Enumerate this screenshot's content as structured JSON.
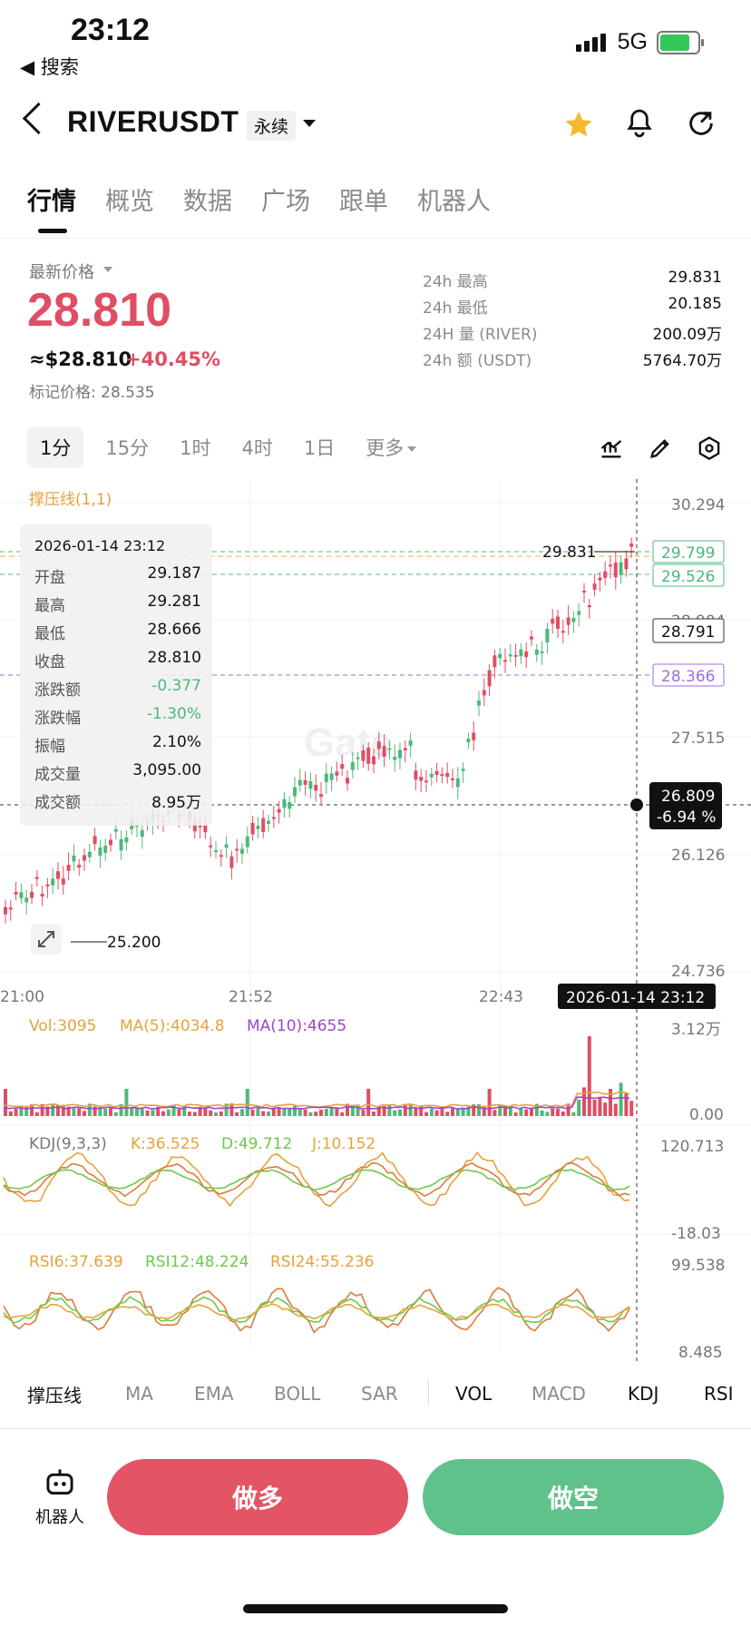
{
  "status": {
    "time": "23:12",
    "back": "◀ 搜索",
    "network": "5G"
  },
  "header": {
    "pair": "RIVERUSDT",
    "contract": "永续"
  },
  "tabs": [
    "行情",
    "概览",
    "数据",
    "广场",
    "跟单",
    "机器人"
  ],
  "ticker": {
    "latest_label": "最新价格",
    "price": "28.810",
    "usd": "≈$28.810",
    "change": "+40.45%",
    "mark": "标记价格: 28.535",
    "stats": [
      {
        "k": "24h  最高",
        "v": "29.831"
      },
      {
        "k": "24h  最低",
        "v": "20.185"
      },
      {
        "k": "24H  量 (RIVER)",
        "v": "200.09万"
      },
      {
        "k": "24h  额 (USDT)",
        "v": "5764.70万"
      }
    ]
  },
  "intervals": [
    "1分",
    "15分",
    "1时",
    "4时",
    "1日",
    "更多"
  ],
  "chart": {
    "sr_label": "撑压线(1,1)",
    "yticks": [
      "30.294",
      "28.904",
      "27.515",
      "26.126",
      "24.736"
    ],
    "xticks": [
      "21:00",
      "21:52",
      "22:43"
    ],
    "tags": {
      "green1": "29.799",
      "green2": "29.526",
      "current": "28.791",
      "purple": "28.366",
      "cursor_price": "26.809",
      "cursor_pct": "-6.94 %",
      "high": "29.831",
      "low": "25.200",
      "cursor_time": "2026-01-14 23:12"
    },
    "watermark": "Gate",
    "vol": {
      "label": "Vol:3095",
      "ma5": "MA(5):4034.8",
      "ma10": "MA(10):4655",
      "top": "3.12万",
      "bottom": "0.00"
    },
    "kdj": {
      "label": "KDJ(9,3,3)",
      "k": "K:36.525",
      "d": "D:49.712",
      "j": "J:10.152",
      "top": "120.713",
      "bottom": "-18.03"
    },
    "rsi": {
      "r6": "RSI6:37.639",
      "r12": "RSI12:48.224",
      "r24": "RSI24:55.236",
      "top": "99.538",
      "bottom": "8.485"
    }
  },
  "tooltip": {
    "date": "2026-01-14 23:12",
    "rows": [
      {
        "k": "开盘",
        "v": "29.187"
      },
      {
        "k": "最高",
        "v": "29.281"
      },
      {
        "k": "最低",
        "v": "28.666"
      },
      {
        "k": "收盘",
        "v": "28.810"
      },
      {
        "k": "涨跌额",
        "v": "-0.377"
      },
      {
        "k": "涨跌幅",
        "v": "-1.30%"
      },
      {
        "k": "振幅",
        "v": "2.10%"
      },
      {
        "k": "成交量",
        "v": "3,095.00"
      },
      {
        "k": "成交额",
        "v": "8.95万"
      }
    ]
  },
  "indicators": [
    "撑压线",
    "MA",
    "EMA",
    "BOLL",
    "SAR",
    "VOL",
    "MACD",
    "KDJ",
    "RSI"
  ],
  "actions": {
    "robot": "机器人",
    "long": "做多",
    "short": "做空"
  },
  "colors": {
    "up": "#e04e63",
    "down": "#4cb97a",
    "star": "#f5b82e"
  }
}
